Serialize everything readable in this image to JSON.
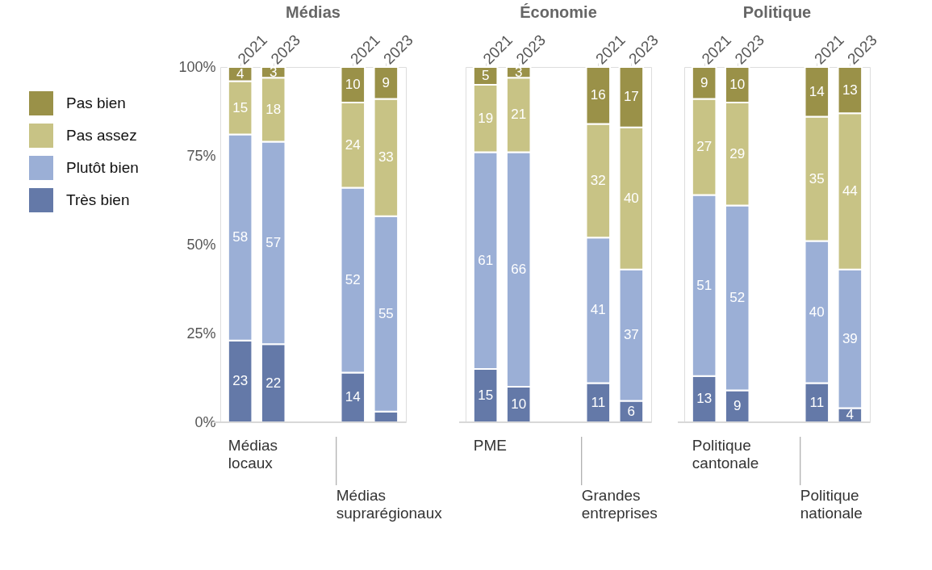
{
  "chart_data": [
    {
      "type": "bar",
      "stacked": true,
      "title": "Médias",
      "categories": [
        "2021",
        "2023",
        "2021",
        "2023"
      ],
      "ylim": [
        0,
        100
      ],
      "yticks": [
        {
          "value": 0,
          "label": "0%"
        },
        {
          "value": 25,
          "label": "25%"
        },
        {
          "value": 50,
          "label": "50%"
        },
        {
          "value": 75,
          "label": "75%"
        },
        {
          "value": 100,
          "label": "100%"
        }
      ],
      "legend": "left",
      "grid": false,
      "annotations": [
        "Médias locaux",
        "Médias suprarégionaux"
      ],
      "series": [
        {
          "name": "Très bien",
          "color": "#6479a8",
          "values": [
            23,
            22,
            14,
            3
          ],
          "value_labels": [
            "23",
            "22",
            "14",
            null
          ]
        },
        {
          "name": "Plutôt bien",
          "color": "#9bafd6",
          "values": [
            58,
            57,
            52,
            55
          ],
          "value_labels": [
            "58",
            "57",
            "52",
            "55"
          ]
        },
        {
          "name": "Pas assez",
          "color": "#c8c385",
          "values": [
            15,
            18,
            24,
            33
          ],
          "value_labels": [
            "15",
            "18",
            "24",
            "33"
          ]
        },
        {
          "name": "Pas bien",
          "color": "#9a9148",
          "values": [
            4,
            3,
            10,
            9
          ],
          "value_labels": [
            "4",
            "3",
            "10",
            "9"
          ]
        }
      ]
    },
    {
      "type": "bar",
      "stacked": true,
      "title": "Économie",
      "categories": [
        "2021",
        "2023",
        "2021",
        "2023"
      ],
      "ylim": [
        0,
        100
      ],
      "tick_labels": "x",
      "legend": false,
      "grid": false,
      "annotations": [
        "PME",
        "Grandes entreprises"
      ],
      "series": [
        {
          "color": "#6479a8",
          "values": [
            15,
            10,
            11,
            6
          ],
          "value_labels": [
            "15",
            "10",
            "11",
            "6"
          ]
        },
        {
          "color": "#9bafd6",
          "values": [
            61,
            66,
            41,
            37
          ],
          "value_labels": [
            "61",
            "66",
            "41",
            "37"
          ]
        },
        {
          "color": "#c8c385",
          "values": [
            19,
            21,
            32,
            40
          ],
          "value_labels": [
            "19",
            "21",
            "32",
            "40"
          ]
        },
        {
          "color": "#9a9148",
          "values": [
            5,
            3,
            16,
            17
          ],
          "value_labels": [
            "5",
            "3",
            "16",
            "17"
          ]
        }
      ]
    },
    {
      "type": "bar",
      "stacked": true,
      "title": "Politique",
      "categories": [
        "2021",
        "2023",
        "2021",
        "2023"
      ],
      "ylim": [
        0,
        100
      ],
      "tick_labels": "x",
      "legend": false,
      "grid": false,
      "annotations": [
        "Politique cantonale",
        "Politique nationale"
      ],
      "series": [
        {
          "color": "#6479a8",
          "values": [
            13,
            9,
            11,
            4
          ],
          "value_labels": [
            "13",
            "9",
            "11",
            "4"
          ]
        },
        {
          "color": "#9bafd6",
          "values": [
            51,
            52,
            40,
            39
          ],
          "value_labels": [
            "51",
            "52",
            "40",
            "39"
          ]
        },
        {
          "color": "#c8c385",
          "values": [
            27,
            29,
            35,
            44
          ],
          "value_labels": [
            "27",
            "29",
            "35",
            "44"
          ]
        },
        {
          "color": "#9a9148",
          "values": [
            9,
            10,
            14,
            13
          ],
          "value_labels": [
            "9",
            "10",
            "14",
            "13"
          ]
        }
      ]
    }
  ]
}
